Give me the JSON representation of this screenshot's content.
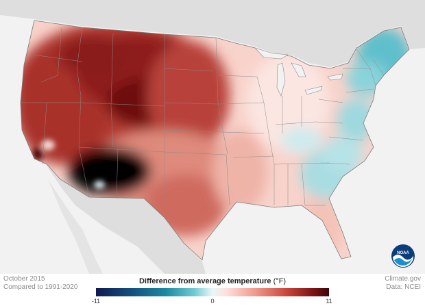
{
  "caption": {
    "month": "October 2015",
    "baseline": "Compared to 1991-2020"
  },
  "credits": {
    "site": "Climate.gov",
    "source": "Data: NCEI"
  },
  "legend": {
    "title": "Difference from average temperature",
    "unit": "(°F)",
    "ticks": [
      "-11",
      "0",
      "11"
    ],
    "min": -11,
    "max": 11,
    "colors": {
      "strong_cold": "#0e1a4f",
      "cold": "#1b8aa0",
      "neutral": "#eaf7f8",
      "warm": "#ef9c8e",
      "strong_warm": "#3b0606"
    }
  },
  "logo": {
    "text": "NOAA"
  },
  "map": {
    "region": "contiguous United States",
    "land_color": "#dedede",
    "ocean_color": "#f2f2f2"
  }
}
